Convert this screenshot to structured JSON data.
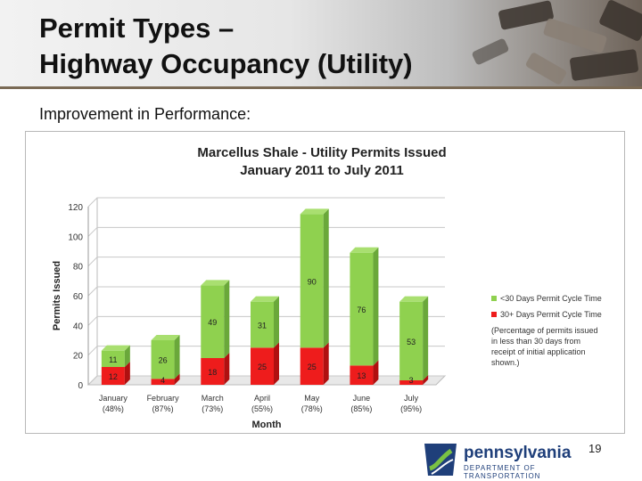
{
  "slide": {
    "title": "Permit Types –\nHighway Occupancy (Utility)",
    "subtitle": "Improvement in Performance:",
    "page_number": "19"
  },
  "logo": {
    "wordmark": "pennsylvania",
    "department": "DEPARTMENT OF TRANSPORTATION"
  },
  "colors": {
    "green": "#8fd14f",
    "green_top": "#a9df70",
    "green_side": "#6aa83a",
    "red": "#ee1c1c",
    "red_side": "#b01010"
  },
  "chart_data": {
    "type": "bar",
    "stacked": true,
    "title": "Marcellus Shale - Utility Permits Issued\nJanuary 2011 to July 2011",
    "xlabel": "Month",
    "ylabel": "Permits Issued",
    "ylim": [
      0,
      120
    ],
    "yticks": [
      0,
      20,
      40,
      60,
      80,
      100,
      120
    ],
    "grid": true,
    "legend_position": "right",
    "categories": [
      "January",
      "February",
      "March",
      "April",
      "May",
      "June",
      "July"
    ],
    "category_sublabels": [
      "(48%)",
      "(87%)",
      "(73%)",
      "(55%)",
      "(78%)",
      "(85%)",
      "(95%)"
    ],
    "series": [
      {
        "name": "30+ Days Permit Cycle Time",
        "color": "#ee1c1c",
        "values": [
          12,
          4,
          18,
          25,
          25,
          13,
          3
        ]
      },
      {
        "name": "<30 Days Permit Cycle Time",
        "color": "#8fd14f",
        "values": [
          11,
          26,
          49,
          31,
          90,
          76,
          53
        ]
      }
    ],
    "legend_note": "(Percentage of permits issued\nin less than 30 days from\nreceipt of initial application\nshown.)"
  }
}
